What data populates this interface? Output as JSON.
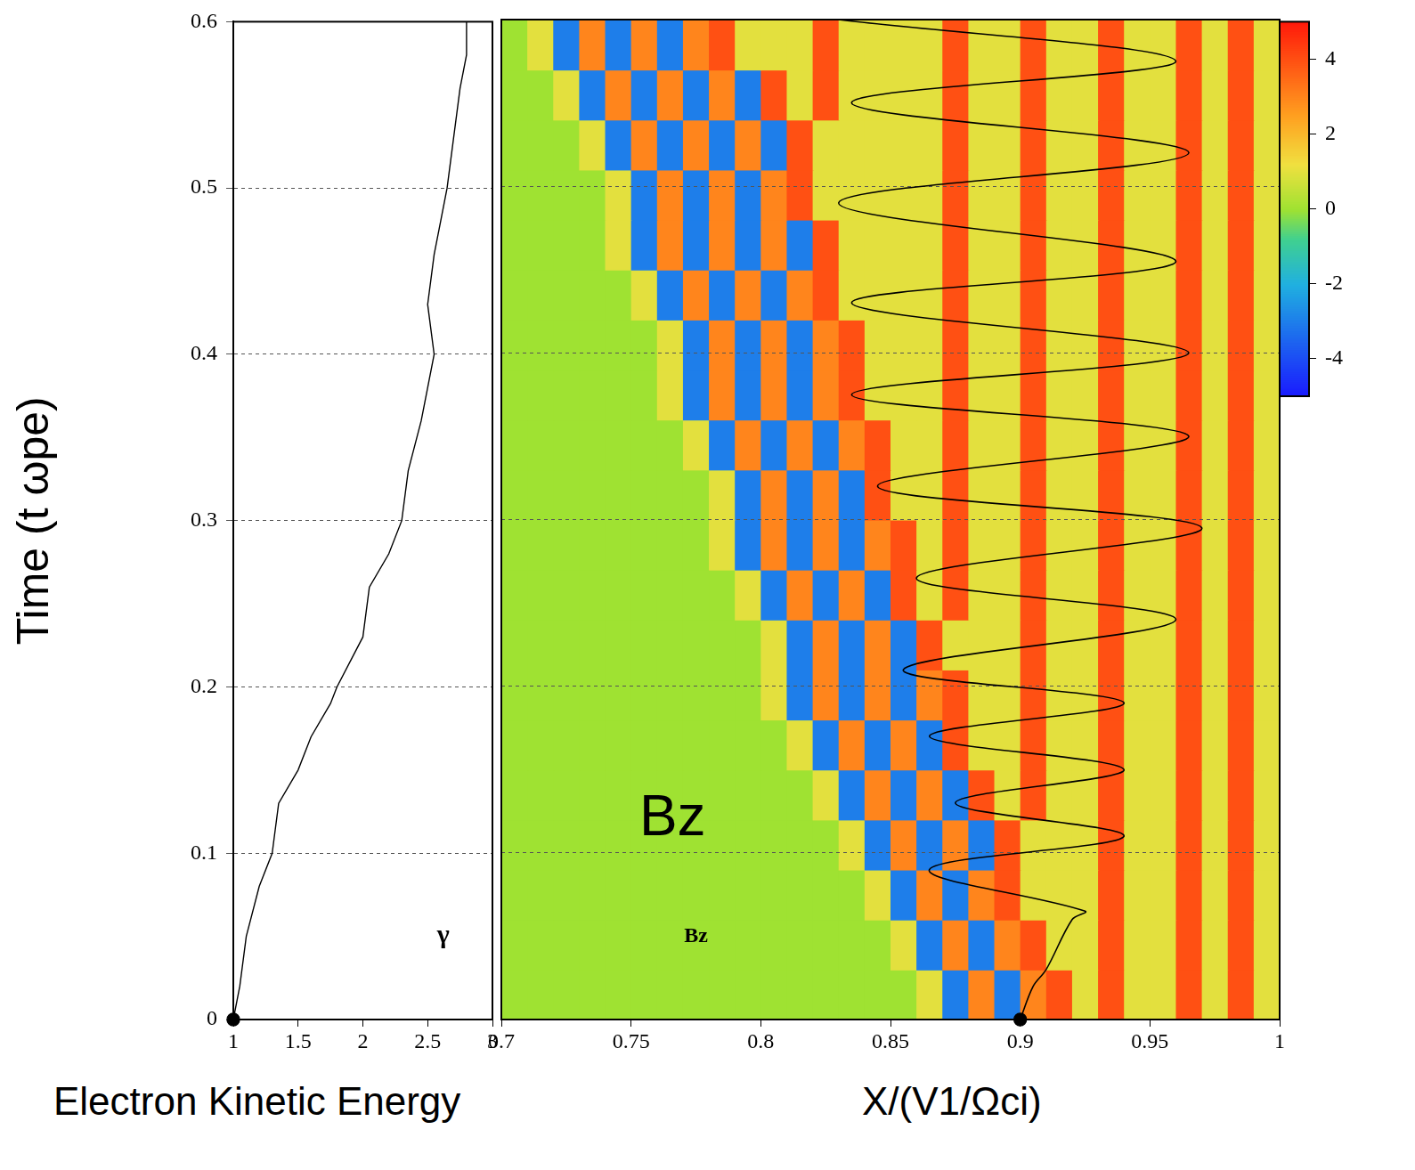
{
  "chart_data": [
    {
      "type": "line",
      "x_label": "Electron Kinetic Energy",
      "y_label": "Time (t ωpe)",
      "annotations": [
        {
          "text": "γ",
          "x": 2.62,
          "y": 0.05
        }
      ],
      "series": [
        {
          "color": "#000000",
          "line_style": "solid",
          "x": [
            1,
            1.05,
            1.1,
            1.2,
            1.3,
            1.35,
            1.5,
            1.6,
            1.75,
            1.8,
            2.0,
            2.05,
            2.2,
            2.3,
            2.35,
            2.45,
            2.5,
            2.55,
            2.5,
            2.55,
            2.6,
            2.65,
            2.7,
            2.75,
            2.8,
            2.8
          ],
          "y": [
            0,
            0.02,
            0.05,
            0.08,
            0.1,
            0.13,
            0.15,
            0.17,
            0.19,
            0.2,
            0.23,
            0.26,
            0.28,
            0.3,
            0.33,
            0.36,
            0.38,
            0.4,
            0.43,
            0.46,
            0.48,
            0.5,
            0.53,
            0.56,
            0.58,
            0.6
          ]
        },
        {
          "color": "#000000",
          "marker": "circle",
          "line_style": "none",
          "x": [
            1
          ],
          "y": [
            0
          ]
        }
      ],
      "xlim": [
        1,
        3
      ],
      "xticks": [
        1,
        1.5,
        2,
        2.5,
        3
      ],
      "ylim": [
        0,
        0.6
      ],
      "yticks": [
        0,
        0.1,
        0.2,
        0.3,
        0.4,
        0.5,
        0.6
      ],
      "grid": true
    },
    {
      "type": "heatmap",
      "x_label": "X/(V1/Ωci)",
      "annotations": [
        {
          "text": "Bz",
          "x": 0.766,
          "y": 0.12
        },
        {
          "text": "Bz",
          "x": 0.775,
          "y": 0.05
        }
      ],
      "x": [
        0.705,
        0.715,
        0.725,
        0.735,
        0.745,
        0.755,
        0.765,
        0.775,
        0.785,
        0.795,
        0.805,
        0.815,
        0.825,
        0.835,
        0.845,
        0.855,
        0.865,
        0.875,
        0.885,
        0.895,
        0.905,
        0.915,
        0.925,
        0.935,
        0.945,
        0.955,
        0.965,
        0.975,
        0.985,
        0.995
      ],
      "y": [
        0.015,
        0.045,
        0.075,
        0.105,
        0.135,
        0.165,
        0.195,
        0.225,
        0.255,
        0.285,
        0.315,
        0.345,
        0.375,
        0.405,
        0.435,
        0.465,
        0.495,
        0.525,
        0.555,
        0.585
      ],
      "z": [
        [
          0,
          0,
          0,
          0,
          0,
          0,
          0,
          0,
          0,
          0,
          0,
          0,
          0,
          0,
          0,
          0,
          1,
          -3,
          3,
          -3,
          3,
          4,
          1,
          4,
          1,
          1,
          4,
          1,
          4,
          1
        ],
        [
          0,
          0,
          0,
          0,
          0,
          0,
          0,
          0,
          0,
          0,
          0,
          0,
          0,
          0,
          0,
          1,
          -3,
          3,
          -3,
          3,
          4,
          1,
          1,
          4,
          1,
          1,
          4,
          1,
          4,
          1
        ],
        [
          0,
          0,
          0,
          0,
          0,
          0,
          0,
          0,
          0,
          0,
          0,
          0,
          0,
          0,
          1,
          -3,
          3,
          -3,
          3,
          4,
          1,
          1,
          1,
          4,
          1,
          1,
          4,
          1,
          4,
          1
        ],
        [
          0,
          0,
          0,
          0,
          0,
          0,
          0,
          0,
          0,
          0,
          0,
          0,
          0,
          1,
          -3,
          3,
          -3,
          3,
          -3,
          4,
          1,
          1,
          1,
          4,
          1,
          1,
          4,
          1,
          4,
          1
        ],
        [
          0,
          0,
          0,
          0,
          0,
          0,
          0,
          0,
          0,
          0,
          0,
          0,
          1,
          -3,
          3,
          -3,
          3,
          -3,
          4,
          1,
          4,
          1,
          1,
          4,
          1,
          1,
          4,
          1,
          4,
          1
        ],
        [
          0,
          0,
          0,
          0,
          0,
          0,
          0,
          0,
          0,
          0,
          0,
          1,
          -3,
          3,
          -3,
          3,
          -3,
          4,
          1,
          1,
          4,
          1,
          1,
          4,
          1,
          1,
          4,
          1,
          4,
          1
        ],
        [
          0,
          0,
          0,
          0,
          0,
          0,
          0,
          0,
          0,
          0,
          1,
          -3,
          3,
          -3,
          3,
          -3,
          3,
          4,
          1,
          1,
          4,
          1,
          1,
          4,
          1,
          1,
          4,
          1,
          4,
          1
        ],
        [
          0,
          0,
          0,
          0,
          0,
          0,
          0,
          0,
          0,
          0,
          1,
          -3,
          3,
          -3,
          3,
          -3,
          4,
          1,
          1,
          1,
          4,
          1,
          1,
          4,
          1,
          1,
          4,
          1,
          4,
          1
        ],
        [
          0,
          0,
          0,
          0,
          0,
          0,
          0,
          0,
          0,
          1,
          -3,
          3,
          -3,
          3,
          -3,
          4,
          1,
          4,
          1,
          1,
          4,
          1,
          1,
          4,
          1,
          1,
          4,
          1,
          4,
          1
        ],
        [
          0,
          0,
          0,
          0,
          0,
          0,
          0,
          0,
          1,
          -3,
          3,
          -3,
          3,
          -3,
          3,
          4,
          1,
          4,
          1,
          1,
          4,
          1,
          1,
          4,
          1,
          1,
          4,
          1,
          4,
          1
        ],
        [
          0,
          0,
          0,
          0,
          0,
          0,
          0,
          0,
          1,
          -3,
          3,
          -3,
          3,
          -3,
          4,
          1,
          1,
          4,
          1,
          1,
          4,
          1,
          1,
          4,
          1,
          1,
          4,
          1,
          4,
          1
        ],
        [
          0,
          0,
          0,
          0,
          0,
          0,
          0,
          1,
          -3,
          3,
          -3,
          3,
          -3,
          3,
          4,
          1,
          1,
          4,
          1,
          1,
          4,
          1,
          1,
          4,
          1,
          1,
          4,
          1,
          4,
          1
        ],
        [
          0,
          0,
          0,
          0,
          0,
          0,
          1,
          -3,
          3,
          -3,
          3,
          -3,
          3,
          4,
          1,
          1,
          1,
          4,
          1,
          1,
          4,
          1,
          1,
          4,
          1,
          1,
          4,
          1,
          4,
          1
        ],
        [
          0,
          0,
          0,
          0,
          0,
          0,
          1,
          -3,
          3,
          -3,
          3,
          -3,
          3,
          4,
          1,
          1,
          1,
          4,
          1,
          1,
          4,
          1,
          1,
          4,
          1,
          1,
          4,
          1,
          4,
          1
        ],
        [
          0,
          0,
          0,
          0,
          0,
          1,
          -3,
          3,
          -3,
          3,
          -3,
          3,
          4,
          1,
          1,
          1,
          1,
          4,
          1,
          1,
          4,
          1,
          1,
          4,
          1,
          1,
          4,
          1,
          4,
          1
        ],
        [
          0,
          0,
          0,
          0,
          1,
          -3,
          3,
          -3,
          3,
          -3,
          3,
          -3,
          4,
          1,
          1,
          1,
          1,
          4,
          1,
          1,
          4,
          1,
          1,
          4,
          1,
          1,
          4,
          1,
          4,
          1
        ],
        [
          0,
          0,
          0,
          0,
          1,
          -3,
          3,
          -3,
          3,
          -3,
          3,
          4,
          1,
          1,
          1,
          1,
          1,
          4,
          1,
          1,
          4,
          1,
          1,
          4,
          1,
          1,
          4,
          1,
          4,
          1
        ],
        [
          0,
          0,
          0,
          1,
          -3,
          3,
          -3,
          3,
          -3,
          3,
          -3,
          4,
          1,
          1,
          1,
          1,
          1,
          4,
          1,
          1,
          4,
          1,
          1,
          4,
          1,
          1,
          4,
          1,
          4,
          1
        ],
        [
          0,
          0,
          1,
          -3,
          3,
          -3,
          3,
          -3,
          3,
          -3,
          4,
          1,
          4,
          1,
          1,
          1,
          1,
          4,
          1,
          1,
          4,
          1,
          1,
          4,
          1,
          1,
          4,
          1,
          4,
          1
        ],
        [
          0,
          1,
          -3,
          3,
          -3,
          3,
          -3,
          3,
          4,
          1,
          1,
          1,
          4,
          1,
          1,
          1,
          1,
          4,
          1,
          1,
          4,
          1,
          1,
          4,
          1,
          1,
          4,
          1,
          4,
          1
        ]
      ],
      "colorbar": {
        "range": [
          -5,
          5
        ],
        "ticks": [
          -4,
          -2,
          0,
          2,
          4
        ]
      },
      "series": [
        {
          "color": "#000000",
          "line_style": "solid",
          "x": [
            0.9,
            0.905,
            0.91,
            0.92,
            0.925,
            0.865,
            0.94,
            0.875,
            0.94,
            0.865,
            0.94,
            0.855,
            0.96,
            0.86,
            0.97,
            0.845,
            0.965,
            0.835,
            0.965,
            0.835,
            0.96,
            0.83,
            0.965,
            0.835,
            0.96,
            0.83
          ],
          "y": [
            0,
            0.02,
            0.03,
            0.06,
            0.065,
            0.09,
            0.11,
            0.13,
            0.15,
            0.17,
            0.19,
            0.21,
            0.24,
            0.265,
            0.295,
            0.32,
            0.35,
            0.375,
            0.4,
            0.43,
            0.455,
            0.49,
            0.52,
            0.55,
            0.575,
            0.6
          ]
        },
        {
          "color": "#000000",
          "marker": "circle",
          "line_style": "none",
          "x": [
            0.9
          ],
          "y": [
            0
          ]
        }
      ],
      "xlim": [
        0.7,
        1
      ],
      "xticks": [
        0.7,
        0.75,
        0.8,
        0.85,
        0.9,
        0.95,
        1
      ],
      "ylim": [
        0,
        0.6
      ],
      "yticks": [
        0,
        0.1,
        0.2,
        0.3,
        0.4,
        0.5,
        0.6
      ],
      "tick_labels": "x",
      "grid": true
    }
  ]
}
